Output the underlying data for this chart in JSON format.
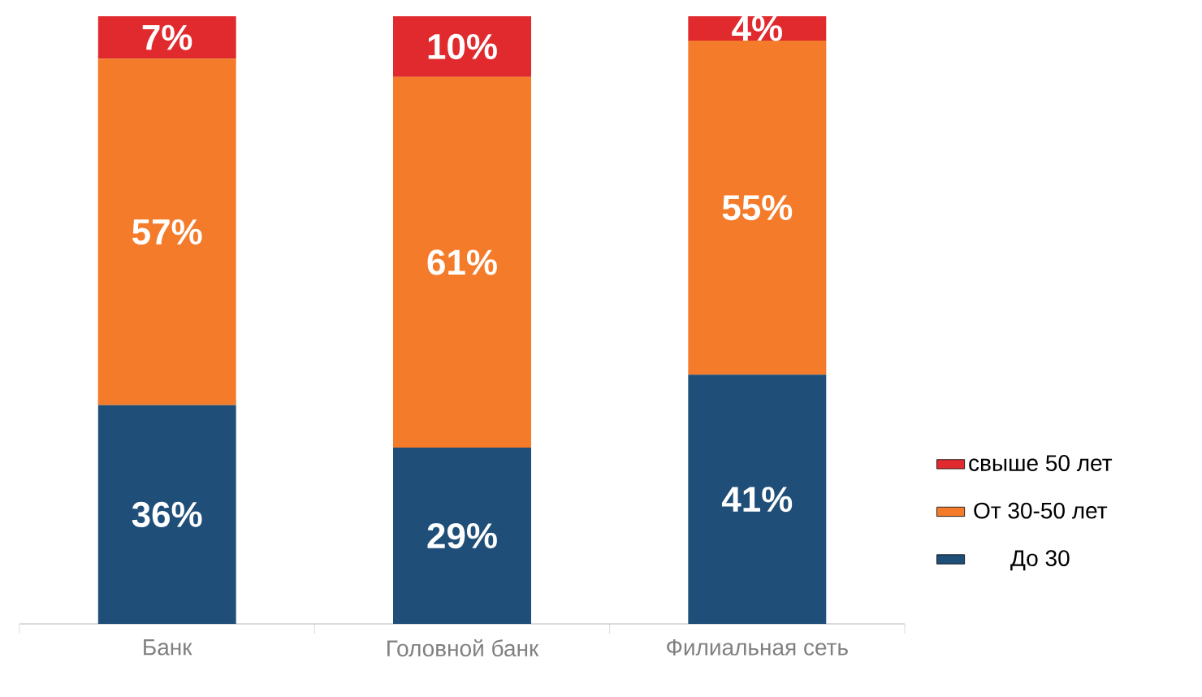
{
  "chart_data": {
    "type": "bar",
    "stacked": true,
    "categories": [
      "Банк",
      "Головной банк",
      "Филиальная сеть"
    ],
    "series": [
      {
        "name": "До 30",
        "color": "#1f4e79",
        "values": [
          36,
          29,
          41
        ],
        "value_labels": [
          "36%",
          "29%",
          "41%"
        ]
      },
      {
        "name": "От 30-50 лет",
        "color": "#f47b2a",
        "values": [
          57,
          61,
          55
        ],
        "value_labels": [
          "57%",
          "61%",
          "55%"
        ]
      },
      {
        "name": "свыше 50 лет",
        "color": "#e02a2e",
        "values": [
          7,
          10,
          4
        ],
        "value_labels": [
          "7%",
          "10%",
          "4%"
        ]
      }
    ],
    "legend": "right",
    "tick_labels": "x"
  }
}
